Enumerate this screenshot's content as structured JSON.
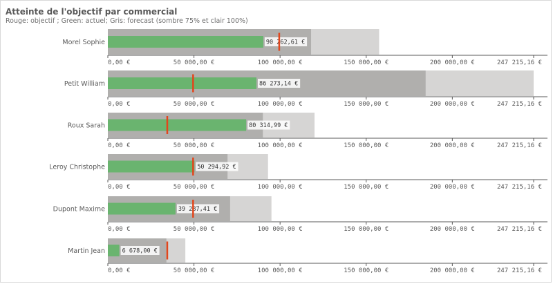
{
  "chart_data": {
    "type": "bullet",
    "title": "Atteinte de l'objectif par commercial",
    "subtitle": "Rouge: objectif ; Green: actuel; Gris: forecast (sombre 75% et clair 100%)",
    "xlim": [
      0,
      247215.16
    ],
    "ticks": [
      0,
      50000,
      100000,
      150000,
      200000,
      247215.16
    ],
    "tick_labels": [
      "0,00 €",
      "50 000,00 €",
      "100 000,00 €",
      "150 000,00 €",
      "200 000,00 €",
      "247 215,16 €"
    ],
    "series": [
      {
        "name": "Morel Sophie",
        "actual": 90262.61,
        "actual_label": "90 262,61 €",
        "target": 99500,
        "forecast_75": 118000,
        "forecast_100": 157500
      },
      {
        "name": "Petit William",
        "actual": 86273.14,
        "actual_label": "86 273,14 €",
        "target": 49500,
        "forecast_75": 184500,
        "forecast_100": 247215.16
      },
      {
        "name": "Roux Sarah",
        "actual": 80314.99,
        "actual_label": "80 314,99 €",
        "target": 34500,
        "forecast_75": 90000,
        "forecast_100": 120000
      },
      {
        "name": "Leroy Christophe",
        "actual": 50294.92,
        "actual_label": "50 294,92 €",
        "target": 49500,
        "forecast_75": 69500,
        "forecast_100": 93000
      },
      {
        "name": "Dupont Maxime",
        "actual": 39287.41,
        "actual_label": "39 287,41 €",
        "target": 49500,
        "forecast_75": 71000,
        "forecast_100": 95000
      },
      {
        "name": "Martin Jean",
        "actual": 6678.0,
        "actual_label": "6 678,00 €",
        "target": 34500,
        "forecast_75": 34000,
        "forecast_100": 45000
      }
    ],
    "colors": {
      "actual": "#6ab46f",
      "target": "#e2461c",
      "forecast_75": "#b0afad",
      "forecast_100": "#d6d5d4",
      "axis": "#595959"
    }
  }
}
